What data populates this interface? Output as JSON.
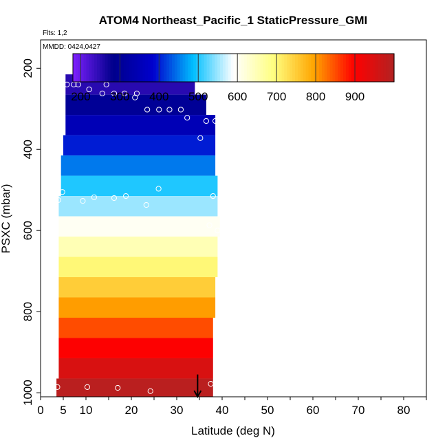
{
  "chart_data": {
    "type": "heatmap",
    "title": "ATOM4 Northeast_Pacific_1 StaticPressure_GMI",
    "subtitle_flights": "Flts: 1,2",
    "subtitle_dates": "MMDD: 0424,0427",
    "xlabel": "Latitude (deg N)",
    "ylabel": "PSXC (mbar)",
    "xlim": [
      0,
      85
    ],
    "ylim": [
      1010,
      130
    ],
    "y_reversed": true,
    "x_ticks": [
      0,
      5,
      10,
      20,
      30,
      40,
      50,
      60,
      70,
      80
    ],
    "y_ticks": [
      200,
      400,
      600,
      800,
      1000
    ],
    "colorbar": {
      "range": [
        180,
        1000
      ],
      "ticks": [
        200,
        300,
        400,
        500,
        600,
        700,
        800,
        900
      ],
      "stops": [
        "#7f20ff",
        "#00008b",
        "#0000cd",
        "#00bfff",
        "#ffffff",
        "#ffff80",
        "#ffa500",
        "#ff0000",
        "#b22222"
      ]
    },
    "cells": [
      {
        "p_lo": 165,
        "p_hi": 215,
        "lat_lo": 28.5,
        "lat_hi": 31.5,
        "value": 200
      },
      {
        "p_lo": 215,
        "p_hi": 265,
        "lat_lo": 5.5,
        "lat_hi": 34.0,
        "value": 250
      },
      {
        "p_lo": 265,
        "p_hi": 315,
        "lat_lo": 5.5,
        "lat_hi": 36.5,
        "value": 300
      },
      {
        "p_lo": 315,
        "p_hi": 365,
        "lat_lo": 5.5,
        "lat_hi": 38.5,
        "value": 350
      },
      {
        "p_lo": 365,
        "p_hi": 415,
        "lat_lo": 5.0,
        "lat_hi": 38.5,
        "value": 400
      },
      {
        "p_lo": 415,
        "p_hi": 465,
        "lat_lo": 4.5,
        "lat_hi": 38.5,
        "value": 450
      },
      {
        "p_lo": 465,
        "p_hi": 515,
        "lat_lo": 4.5,
        "lat_hi": 39.0,
        "value": 500
      },
      {
        "p_lo": 515,
        "p_hi": 565,
        "lat_lo": 4.0,
        "lat_hi": 39.0,
        "value": 550
      },
      {
        "p_lo": 565,
        "p_hi": 615,
        "lat_lo": 4.0,
        "lat_hi": 39.5,
        "value": 600
      },
      {
        "p_lo": 615,
        "p_hi": 665,
        "lat_lo": 4.0,
        "lat_hi": 39.0,
        "value": 650
      },
      {
        "p_lo": 665,
        "p_hi": 715,
        "lat_lo": 4.0,
        "lat_hi": 39.0,
        "value": 700
      },
      {
        "p_lo": 715,
        "p_hi": 765,
        "lat_lo": 4.0,
        "lat_hi": 38.5,
        "value": 750
      },
      {
        "p_lo": 765,
        "p_hi": 815,
        "lat_lo": 4.0,
        "lat_hi": 38.5,
        "value": 800
      },
      {
        "p_lo": 815,
        "p_hi": 865,
        "lat_lo": 4.0,
        "lat_hi": 38.0,
        "value": 850
      },
      {
        "p_lo": 865,
        "p_hi": 915,
        "lat_lo": 4.0,
        "lat_hi": 38.0,
        "value": 900
      },
      {
        "p_lo": 915,
        "p_hi": 965,
        "lat_lo": 4.0,
        "lat_hi": 38.0,
        "value": 950
      },
      {
        "p_lo": 965,
        "p_hi": 1010,
        "lat_lo": 3.5,
        "lat_hi": 38.0,
        "value": 990
      }
    ],
    "points": [
      {
        "lat": 28.5,
        "p": 200
      },
      {
        "lat": 31.0,
        "p": 200
      },
      {
        "lat": 5.8,
        "p": 240
      },
      {
        "lat": 7.3,
        "p": 240
      },
      {
        "lat": 8.3,
        "p": 240
      },
      {
        "lat": 10.7,
        "p": 252
      },
      {
        "lat": 13.6,
        "p": 262
      },
      {
        "lat": 14.5,
        "p": 240
      },
      {
        "lat": 16.2,
        "p": 262
      },
      {
        "lat": 18.5,
        "p": 262
      },
      {
        "lat": 20.8,
        "p": 272
      },
      {
        "lat": 21.2,
        "p": 262
      },
      {
        "lat": 23.5,
        "p": 302
      },
      {
        "lat": 26.1,
        "p": 302
      },
      {
        "lat": 28.4,
        "p": 302
      },
      {
        "lat": 30.9,
        "p": 302
      },
      {
        "lat": 32.3,
        "p": 322
      },
      {
        "lat": 35.2,
        "p": 372
      },
      {
        "lat": 36.5,
        "p": 330
      },
      {
        "lat": 38.5,
        "p": 330
      },
      {
        "lat": 4.8,
        "p": 505
      },
      {
        "lat": 3.9,
        "p": 525
      },
      {
        "lat": 9.3,
        "p": 527
      },
      {
        "lat": 11.8,
        "p": 518
      },
      {
        "lat": 16.2,
        "p": 520
      },
      {
        "lat": 18.8,
        "p": 515
      },
      {
        "lat": 23.3,
        "p": 537
      },
      {
        "lat": 26.0,
        "p": 497
      },
      {
        "lat": 38.0,
        "p": 515
      },
      {
        "lat": 37.2,
        "p": 587
      },
      {
        "lat": 39.0,
        "p": 600
      },
      {
        "lat": 3.7,
        "p": 986
      },
      {
        "lat": 10.3,
        "p": 986
      },
      {
        "lat": 17.0,
        "p": 988
      },
      {
        "lat": 24.2,
        "p": 996
      },
      {
        "lat": 37.5,
        "p": 978
      }
    ],
    "arrow": {
      "lat": 34.6,
      "p_from": 955,
      "p_to": 1010
    }
  }
}
